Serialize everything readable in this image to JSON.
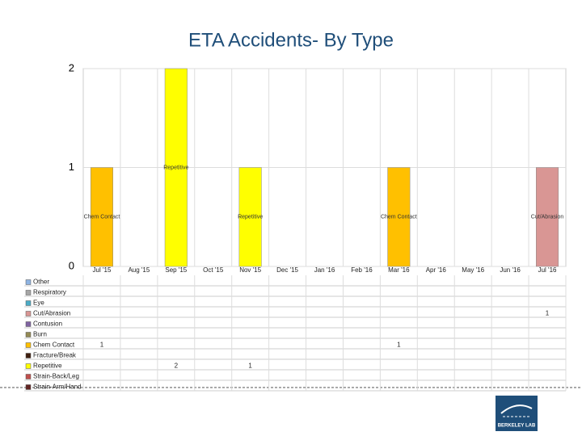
{
  "chart_data": {
    "type": "stacked_bar",
    "title": "ETA Accidents- By Type",
    "categories": [
      "Jul '15",
      "Aug '15",
      "Sep '15",
      "Oct '15",
      "Nov '15",
      "Dec '15",
      "Jan '16",
      "Feb '16",
      "Mar '16",
      "Apr '16",
      "May '16",
      "Jun '16",
      "Jul '16"
    ],
    "series": [
      {
        "name": "Other",
        "color": "#8eb4e3",
        "values": [
          null,
          null,
          null,
          null,
          null,
          null,
          null,
          null,
          null,
          null,
          null,
          null,
          null
        ]
      },
      {
        "name": "Respiratory",
        "color": "#a6a6a6",
        "values": [
          null,
          null,
          null,
          null,
          null,
          null,
          null,
          null,
          null,
          null,
          null,
          null,
          null
        ]
      },
      {
        "name": "Eye",
        "color": "#4bacc6",
        "values": [
          null,
          null,
          null,
          null,
          null,
          null,
          null,
          null,
          null,
          null,
          null,
          null,
          null
        ]
      },
      {
        "name": "Cut/Abrasion",
        "color": "#d99694",
        "values": [
          null,
          null,
          null,
          null,
          null,
          null,
          null,
          null,
          null,
          null,
          null,
          null,
          1
        ]
      },
      {
        "name": "Contusion",
        "color": "#8064a2",
        "values": [
          null,
          null,
          null,
          null,
          null,
          null,
          null,
          null,
          null,
          null,
          null,
          null,
          null
        ]
      },
      {
        "name": "Burn",
        "color": "#948a54",
        "values": [
          null,
          null,
          null,
          null,
          null,
          null,
          null,
          null,
          null,
          null,
          null,
          null,
          null
        ]
      },
      {
        "name": "Chem Contact",
        "color": "#ffc000",
        "values": [
          1,
          null,
          null,
          null,
          null,
          null,
          null,
          null,
          1,
          null,
          null,
          null,
          null
        ]
      },
      {
        "name": "Fracture/Break",
        "color": "#3f1f0f",
        "values": [
          null,
          null,
          null,
          null,
          null,
          null,
          null,
          null,
          null,
          null,
          null,
          null,
          null
        ]
      },
      {
        "name": "Repetitive",
        "color": "#ffff00",
        "values": [
          null,
          null,
          2,
          null,
          1,
          null,
          null,
          null,
          null,
          null,
          null,
          null,
          null
        ]
      },
      {
        "name": "Strain-Back/Leg",
        "color": "#c0504d",
        "values": [
          null,
          null,
          null,
          null,
          null,
          null,
          null,
          null,
          null,
          null,
          null,
          null,
          null
        ]
      },
      {
        "name": "Strain-Arm/Hand",
        "color": "#632523",
        "values": [
          null,
          null,
          null,
          null,
          null,
          null,
          null,
          null,
          null,
          null,
          null,
          null,
          null
        ]
      }
    ],
    "ylim": [
      0,
      2
    ],
    "yticks": [
      0,
      1,
      2
    ],
    "grid": true
  },
  "logo_text": "BERKELEY LAB"
}
